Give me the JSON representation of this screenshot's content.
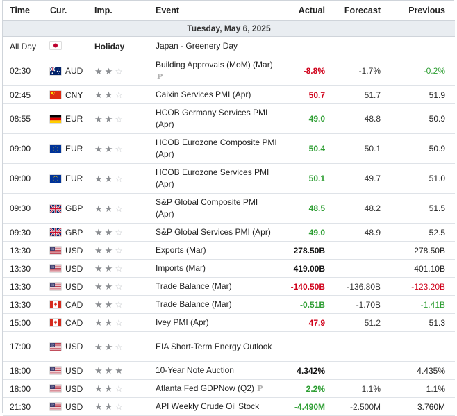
{
  "headers": {
    "time": "Time",
    "currency": "Cur.",
    "importance": "Imp.",
    "event": "Event",
    "actual": "Actual",
    "forecast": "Forecast",
    "previous": "Previous"
  },
  "date_label": "Tuesday, May 6, 2025",
  "holiday": {
    "time": "All Day",
    "flag": "jp",
    "label": "Holiday",
    "event": "Japan - Greenery Day"
  },
  "rows": [
    {
      "time": "02:30",
      "flag": "au",
      "currency": "AUD",
      "stars": 2,
      "event_lines": [
        "Building Approvals (MoM) (Mar)"
      ],
      "preliminary": "P",
      "actual": "-8.8%",
      "actual_tone": "neg",
      "forecast": "-1.7%",
      "previous": "-0.2%",
      "previous_tone": "revised-up"
    },
    {
      "time": "02:45",
      "flag": "cn",
      "currency": "CNY",
      "stars": 2,
      "event_lines": [
        "Caixin Services PMI (Apr)"
      ],
      "actual": "50.7",
      "actual_tone": "neg",
      "forecast": "51.7",
      "previous": "51.9"
    },
    {
      "time": "08:55",
      "flag": "de",
      "currency": "EUR",
      "stars": 2,
      "event_lines": [
        "HCOB Germany Services PMI",
        "(Apr)"
      ],
      "actual": "49.0",
      "actual_tone": "pos",
      "forecast": "48.8",
      "previous": "50.9"
    },
    {
      "time": "09:00",
      "flag": "eu",
      "currency": "EUR",
      "stars": 2,
      "event_lines": [
        "HCOB Eurozone Composite PMI",
        "(Apr)"
      ],
      "actual": "50.4",
      "actual_tone": "pos",
      "forecast": "50.1",
      "previous": "50.9"
    },
    {
      "time": "09:00",
      "flag": "eu",
      "currency": "EUR",
      "stars": 2,
      "event_lines": [
        "HCOB Eurozone Services PMI",
        "(Apr)"
      ],
      "actual": "50.1",
      "actual_tone": "pos",
      "forecast": "49.7",
      "previous": "51.0"
    },
    {
      "time": "09:30",
      "flag": "gb",
      "currency": "GBP",
      "stars": 2,
      "event_lines": [
        "S&P Global Composite PMI",
        "(Apr)"
      ],
      "actual": "48.5",
      "actual_tone": "pos",
      "forecast": "48.2",
      "previous": "51.5"
    },
    {
      "time": "09:30",
      "flag": "gb",
      "currency": "GBP",
      "stars": 2,
      "event_lines": [
        "S&P Global Services PMI (Apr)"
      ],
      "actual": "49.0",
      "actual_tone": "pos",
      "forecast": "48.9",
      "previous": "52.5"
    },
    {
      "time": "13:30",
      "flag": "us",
      "currency": "USD",
      "stars": 2,
      "event_lines": [
        "Exports (Mar)"
      ],
      "actual": "278.50B",
      "actual_tone": "neutral",
      "forecast": "",
      "previous": "278.50B"
    },
    {
      "time": "13:30",
      "flag": "us",
      "currency": "USD",
      "stars": 2,
      "event_lines": [
        "Imports (Mar)"
      ],
      "actual": "419.00B",
      "actual_tone": "neutral",
      "forecast": "",
      "previous": "401.10B"
    },
    {
      "time": "13:30",
      "flag": "us",
      "currency": "USD",
      "stars": 2,
      "event_lines": [
        "Trade Balance (Mar)"
      ],
      "actual": "-140.50B",
      "actual_tone": "neg",
      "forecast": "-136.80B",
      "previous": "-123.20B",
      "previous_tone": "revised-down"
    },
    {
      "time": "13:30",
      "flag": "ca",
      "currency": "CAD",
      "stars": 2,
      "event_lines": [
        "Trade Balance (Mar)"
      ],
      "actual": "-0.51B",
      "actual_tone": "pos",
      "forecast": "-1.70B",
      "previous": "-1.41B",
      "previous_tone": "revised-up"
    },
    {
      "time": "15:00",
      "flag": "ca",
      "currency": "CAD",
      "stars": 2,
      "event_lines": [
        "Ivey PMI (Apr)"
      ],
      "actual": "47.9",
      "actual_tone": "neg",
      "forecast": "51.2",
      "previous": "51.3"
    },
    {
      "time": "17:00",
      "flag": "us",
      "currency": "USD",
      "stars": 2,
      "event_lines": [
        "EIA Short-Term Energy Outlook",
        ""
      ],
      "actual": "",
      "actual_tone": "neutral",
      "forecast": "",
      "previous": ""
    },
    {
      "time": "18:00",
      "flag": "us",
      "currency": "USD",
      "stars": 3,
      "event_lines": [
        "10-Year Note Auction"
      ],
      "actual": "4.342%",
      "actual_tone": "neutral",
      "forecast": "",
      "previous": "4.435%"
    },
    {
      "time": "18:00",
      "flag": "us",
      "currency": "USD",
      "stars": 2,
      "event_lines": [
        "Atlanta Fed GDPNow (Q2)"
      ],
      "preliminary_inline": "P",
      "actual": "2.2%",
      "actual_tone": "pos",
      "forecast": "1.1%",
      "previous": "1.1%"
    },
    {
      "time": "21:30",
      "flag": "us",
      "currency": "USD",
      "stars": 2,
      "event_lines": [
        "API Weekly Crude Oil Stock"
      ],
      "actual": "-4.490M",
      "actual_tone": "pos",
      "forecast": "-2.500M",
      "previous": "3.760M"
    }
  ]
}
